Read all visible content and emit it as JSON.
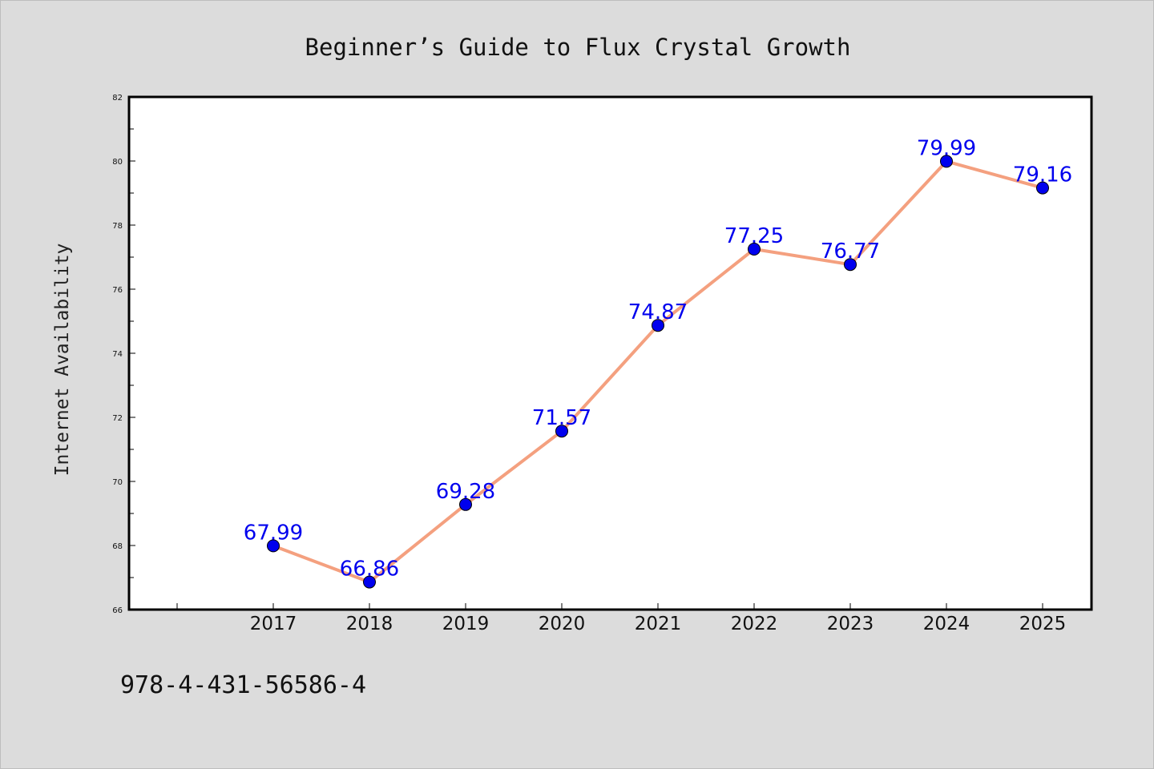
{
  "chart_data": {
    "type": "line",
    "title": "Beginner’s Guide to Flux Crystal Growth",
    "xlabel": "",
    "ylabel": "Internet Availability",
    "x": [
      "2017",
      "2018",
      "2019",
      "2020",
      "2021",
      "2022",
      "2023",
      "2024",
      "2025"
    ],
    "values": [
      67.99,
      66.86,
      69.28,
      71.57,
      74.87,
      77.25,
      76.77,
      79.99,
      79.16
    ],
    "data_labels": [
      "67.99",
      "66.86",
      "69.28",
      "71.57",
      "74.87",
      "77.25",
      "76.77",
      "79.99",
      "79.16"
    ],
    "ylim": [
      66,
      82
    ],
    "yticks": [
      "66",
      "68",
      "70",
      "72",
      "74",
      "76",
      "78",
      "80",
      "82"
    ],
    "grid": false,
    "legend": "none",
    "colors": {
      "line": "#f4a07f",
      "marker": "#0000ee",
      "data_label": "#0000ee",
      "background": "#dcdcdc",
      "plot_background": "#ffffff"
    }
  },
  "footer": {
    "isbn": "978-4-431-56586-4"
  }
}
